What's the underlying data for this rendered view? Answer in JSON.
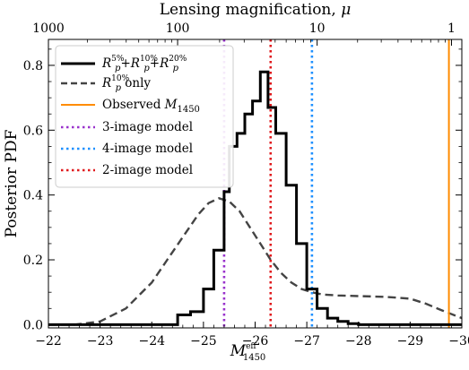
{
  "chart_data": {
    "type": "line",
    "xlabel": "M",
    "xlabel_sup": "eff",
    "xlabel_sub": "1450",
    "ylabel": "Posterior PDF",
    "top_xlabel": "Lensing magnification, μ",
    "xlim": [
      -22,
      -30
    ],
    "ylim": [
      -0.01,
      0.88
    ],
    "x_ticks": [
      -22,
      -23,
      -24,
      -25,
      -26,
      -27,
      -28,
      -29,
      -30
    ],
    "x_tick_labels": [
      "−22",
      "−23",
      "−24",
      "−25",
      "−26",
      "−27",
      "−28",
      "−29",
      "−30"
    ],
    "y_ticks": [
      0.0,
      0.2,
      0.4,
      0.6,
      0.8
    ],
    "y_tick_labels": [
      "0.0",
      "0.2",
      "0.4",
      "0.6",
      "0.8"
    ],
    "top_ticks": [
      {
        "label": "1000",
        "m": -22.0
      },
      {
        "label": "100",
        "m": -24.5
      },
      {
        "label": "10",
        "m": -27.2
      },
      {
        "label": "1",
        "m": -29.8
      }
    ],
    "legend_position": "top-left",
    "series": [
      {
        "name": "R_p^{5%}+R_p^{10%}+R_p^{20%}",
        "style": "step",
        "color": "#000000",
        "edges": [
          -22.0,
          -24.5,
          -24.75,
          -25.0,
          -25.2,
          -25.4,
          -25.5,
          -25.65,
          -25.8,
          -25.95,
          -26.1,
          -26.25,
          -26.4,
          -26.6,
          -26.8,
          -27.0,
          -27.2,
          -27.4,
          -27.6,
          -27.8,
          -28.0,
          -30.0
        ],
        "values": [
          0.0,
          0.03,
          0.04,
          0.11,
          0.23,
          0.41,
          0.55,
          0.59,
          0.65,
          0.69,
          0.78,
          0.67,
          0.59,
          0.43,
          0.25,
          0.11,
          0.05,
          0.02,
          0.01,
          0.003,
          0.0
        ]
      },
      {
        "name": "R_p^{10%} only",
        "style": "dashed",
        "color": "#444444",
        "x": [
          -22.0,
          -22.5,
          -23.0,
          -23.5,
          -24.0,
          -24.3,
          -24.6,
          -24.9,
          -25.1,
          -25.3,
          -25.5,
          -25.7,
          -25.9,
          -26.1,
          -26.3,
          -26.5,
          -26.7,
          -26.9,
          -27.1,
          -27.3,
          -27.6,
          -28.0,
          -28.5,
          -29.0,
          -29.3,
          -29.6,
          -30.0
        ],
        "y": [
          0.0,
          0.0,
          0.01,
          0.05,
          0.13,
          0.2,
          0.27,
          0.34,
          0.375,
          0.39,
          0.38,
          0.35,
          0.3,
          0.25,
          0.2,
          0.16,
          0.13,
          0.11,
          0.1,
          0.093,
          0.09,
          0.088,
          0.086,
          0.08,
          0.065,
          0.045,
          0.02
        ]
      },
      {
        "name": "Observed M_1450",
        "style": "vline",
        "color": "#ff8c00",
        "x": -29.75
      },
      {
        "name": "3-image model",
        "style": "dotted-vline",
        "color": "#9932cc",
        "x": -25.4
      },
      {
        "name": "4-image model",
        "style": "dotted-vline",
        "color": "#1e90ff",
        "x": -27.1
      },
      {
        "name": "2-image model",
        "style": "dotted-vline",
        "color": "#e0191c",
        "x": -26.3
      }
    ]
  },
  "legend": {
    "items": [
      {
        "id": "combined",
        "base": "R",
        "parts": [
          {
            "sub": "p",
            "sup": "5%",
            "after": "+R"
          },
          {
            "sub": "p",
            "sup": "10%",
            "after": "+R"
          },
          {
            "sub": "p",
            "sup": "20%",
            "after": ""
          }
        ]
      },
      {
        "id": "only10",
        "base": "R",
        "sub": "p",
        "sup": "10%",
        "after": " only"
      },
      {
        "id": "observed",
        "text": "Observed M",
        "sub": "1450"
      },
      {
        "id": "three",
        "text": "3-image model"
      },
      {
        "id": "four",
        "text": "4-image model"
      },
      {
        "id": "two",
        "text": "2-image model"
      }
    ]
  }
}
